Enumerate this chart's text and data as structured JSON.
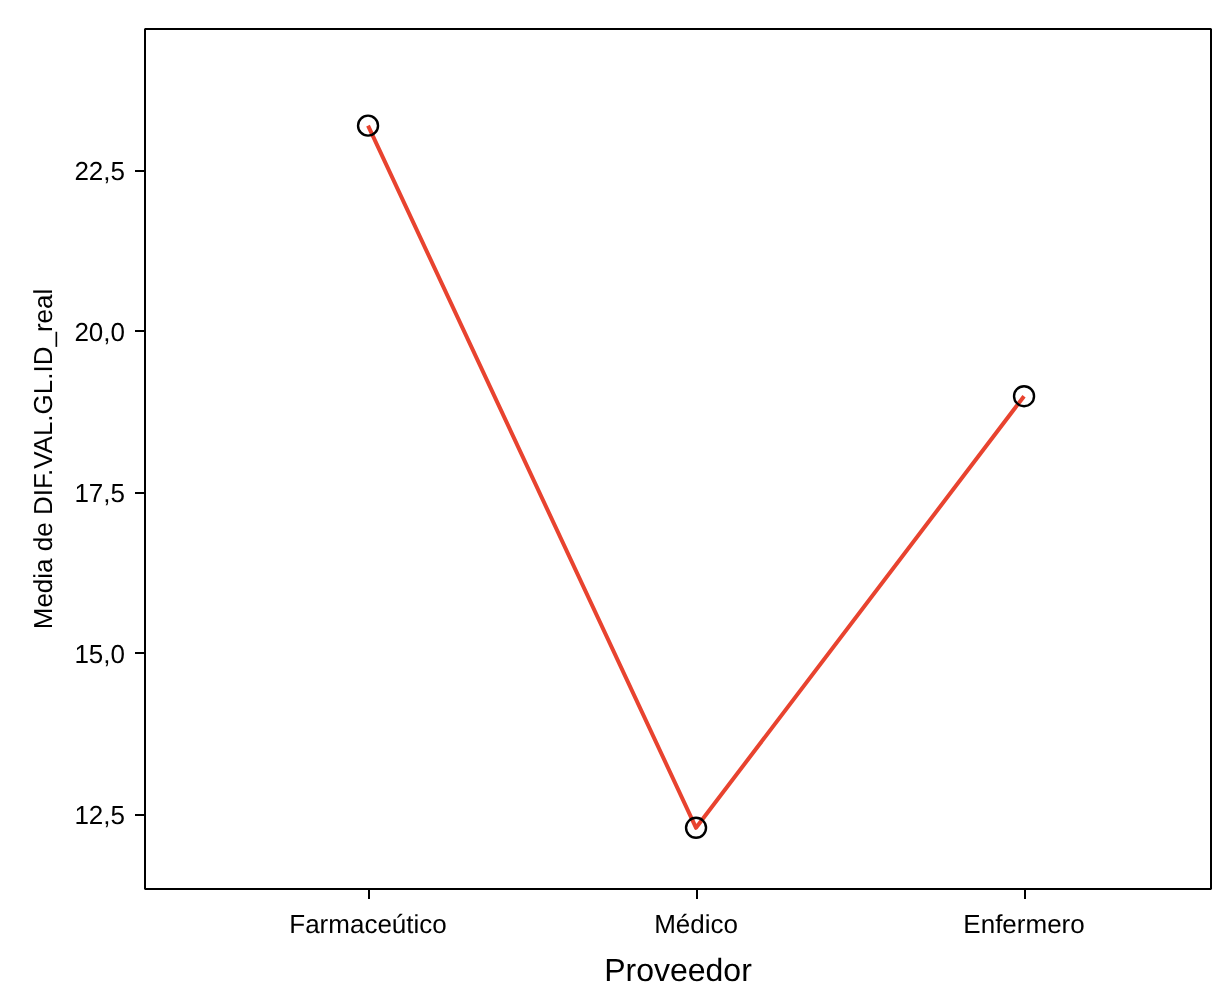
{
  "chart_data": {
    "type": "line",
    "xlabel": "Proveedor",
    "ylabel": "Media de DIF.VAL.GL.ID_real",
    "categories": [
      "Farmaceútico",
      "Médico",
      "Enfermero"
    ],
    "series": [
      {
        "color": "#e8432f",
        "values": [
          23.2,
          12.3,
          19.0
        ]
      }
    ],
    "ylim": [
      11.35,
      24.7
    ],
    "yticks": [
      {
        "value": 12.5,
        "label": "12,5"
      },
      {
        "value": 15,
        "label": "15,0"
      },
      {
        "value": 17.5,
        "label": "17,5"
      },
      {
        "value": 20,
        "label": "20,0"
      },
      {
        "value": 22.5,
        "label": "22,5"
      }
    ],
    "marker": "circle",
    "line_style": "solid"
  }
}
